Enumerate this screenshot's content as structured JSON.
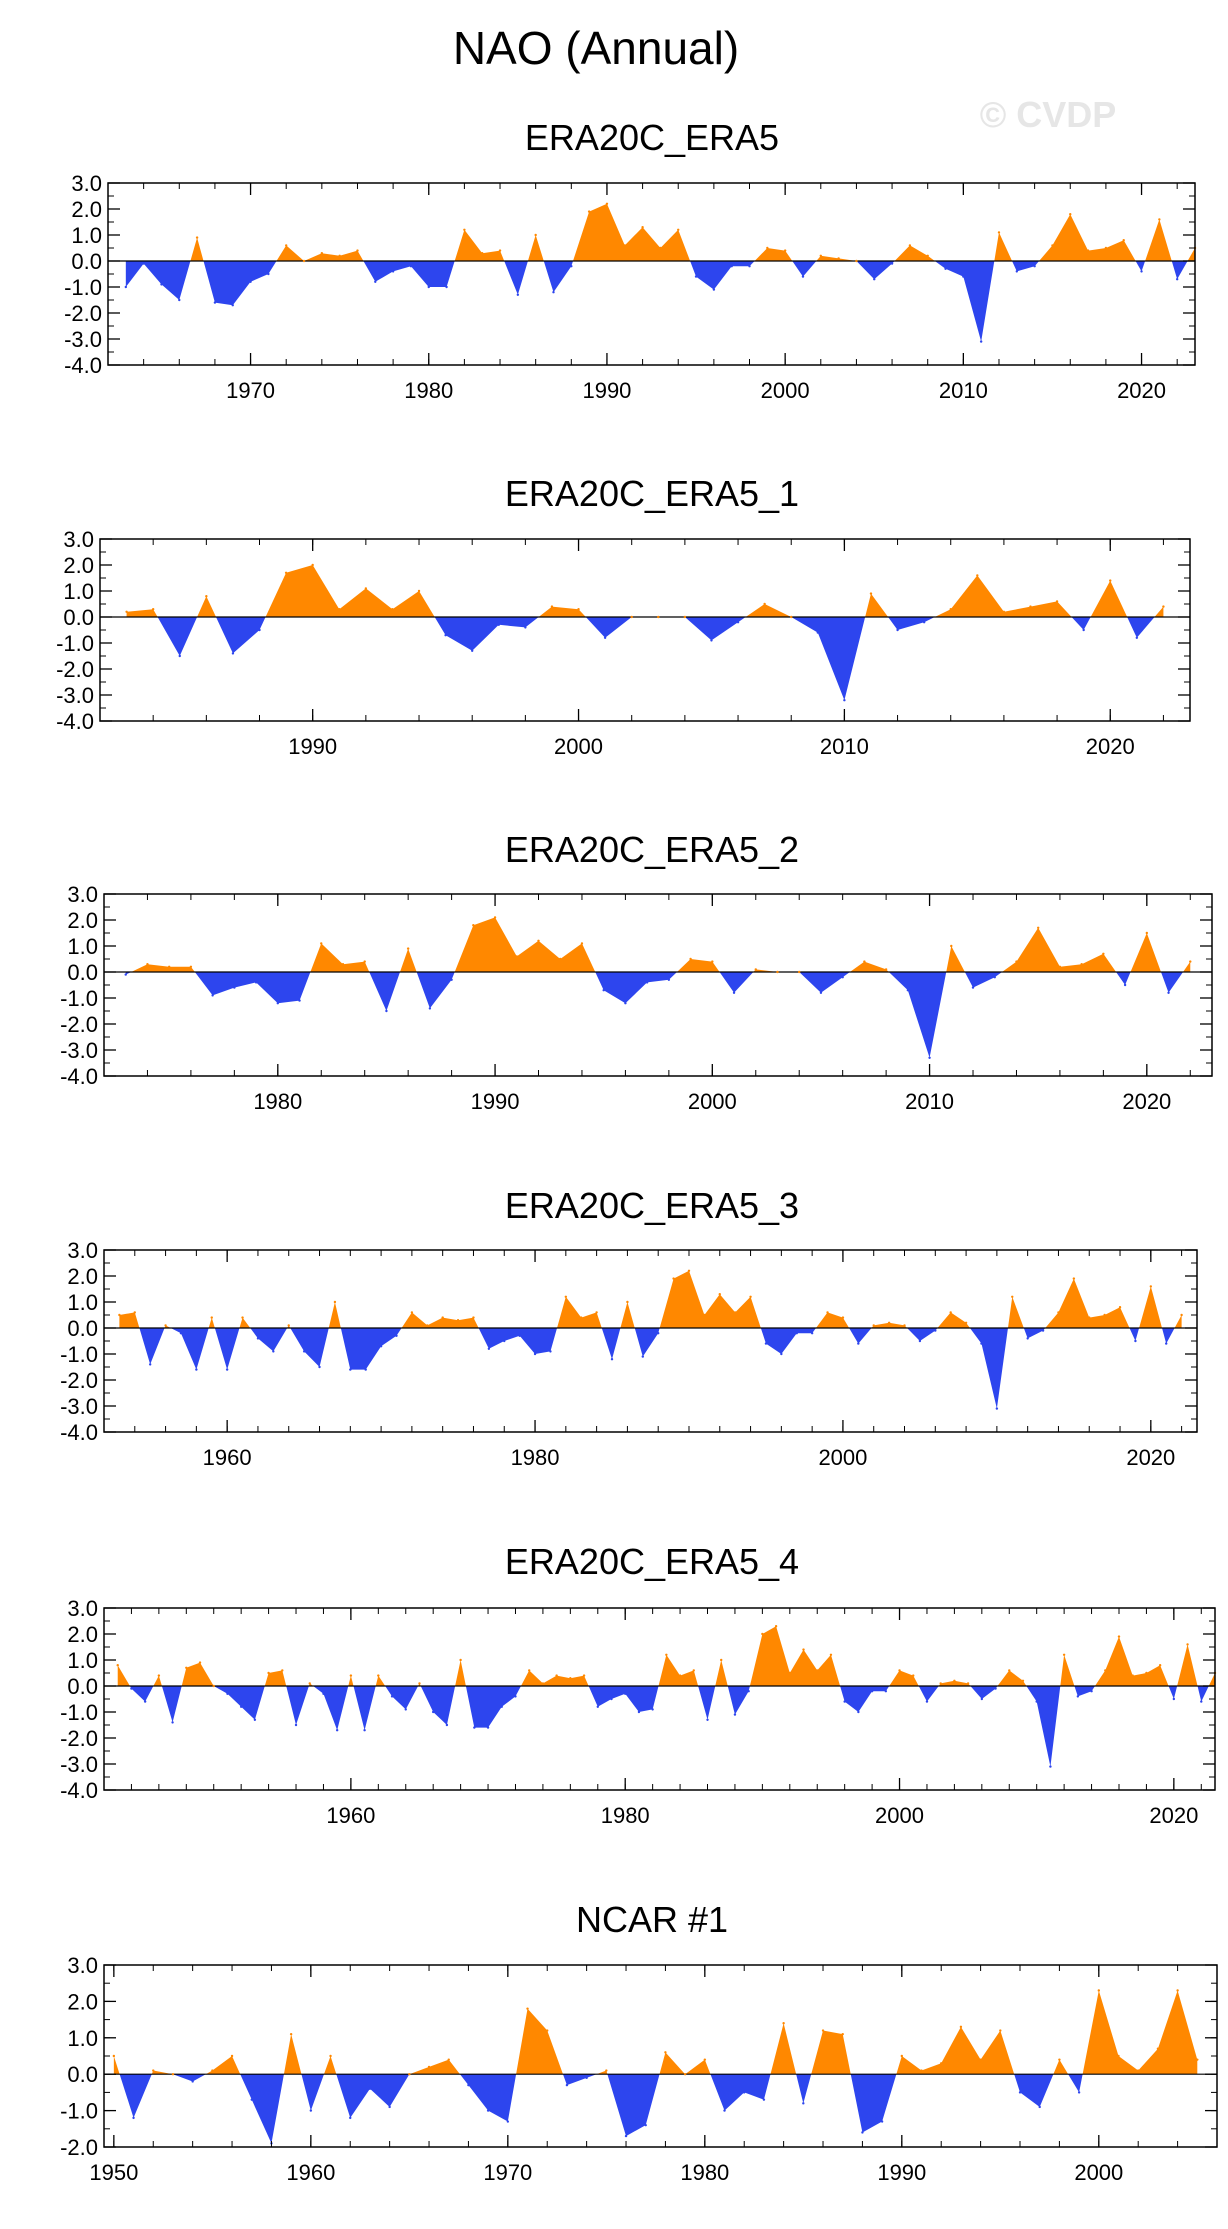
{
  "figure": {
    "title": "NAO (Annual)",
    "watermark": "© CVDP",
    "pos_color": "#ff8800",
    "neg_color": "#2d45ee"
  },
  "chart_data": [
    {
      "type": "area",
      "title": "ERA20C_ERA5",
      "xlim": [
        1962,
        2023
      ],
      "ylim": [
        -4.0,
        3.0
      ],
      "yticks": [
        3.0,
        2.0,
        1.0,
        0.0,
        -1.0,
        -2.0,
        -3.0,
        -4.0
      ],
      "ytick_labels": [
        "3.0",
        "2.0",
        "1.0",
        "0.0",
        "-1.0",
        "-2.0",
        "-3.0",
        "-4.0"
      ],
      "xticks": [
        1970,
        1980,
        1990,
        2000,
        2010,
        2020
      ],
      "xtick_labels": [
        "1970",
        "1980",
        "1990",
        "2000",
        "2010",
        "2020"
      ],
      "x_start": 1963,
      "values": [
        -1.0,
        -0.1,
        -0.9,
        -1.5,
        0.9,
        -1.6,
        -1.7,
        -0.8,
        -0.5,
        0.6,
        0.0,
        0.3,
        0.2,
        0.4,
        -0.8,
        -0.4,
        -0.2,
        -1.0,
        -1.0,
        1.2,
        0.3,
        0.4,
        -1.3,
        1.0,
        -1.2,
        -0.2,
        1.9,
        2.2,
        0.6,
        1.3,
        0.5,
        1.2,
        -0.6,
        -1.1,
        -0.2,
        -0.2,
        0.5,
        0.4,
        -0.6,
        0.2,
        0.1,
        0.0,
        -0.7,
        -0.1,
        0.6,
        0.2,
        -0.3,
        -0.6,
        -3.1,
        1.1,
        -0.4,
        -0.2,
        0.6,
        1.8,
        0.4,
        0.5,
        0.8,
        -0.4,
        1.6,
        -0.7,
        0.5
      ]
    },
    {
      "type": "area",
      "title": "ERA20C_ERA5_1",
      "xlim": [
        1982,
        2023
      ],
      "ylim": [
        -4.0,
        3.0
      ],
      "yticks": [
        3.0,
        2.0,
        1.0,
        0.0,
        -1.0,
        -2.0,
        -3.0,
        -4.0
      ],
      "ytick_labels": [
        "3.0",
        "2.0",
        "1.0",
        "0.0",
        "-1.0",
        "-2.0",
        "-3.0",
        "-4.0"
      ],
      "xticks": [
        1990,
        2000,
        2010,
        2020
      ],
      "xtick_labels": [
        "1990",
        "2000",
        "2010",
        "2020"
      ],
      "x_start": 1983,
      "values": [
        0.2,
        0.3,
        -1.5,
        0.8,
        -1.4,
        -0.5,
        1.7,
        2.0,
        0.3,
        1.1,
        0.3,
        1.0,
        -0.7,
        -1.3,
        -0.3,
        -0.4,
        0.4,
        0.3,
        -0.8,
        0.0,
        0.0,
        0.0,
        -0.9,
        -0.2,
        0.5,
        0.0,
        -0.6,
        -3.2,
        0.9,
        -0.5,
        -0.2,
        0.3,
        1.6,
        0.2,
        0.4,
        0.6,
        -0.5,
        1.4,
        -0.8,
        0.4
      ]
    },
    {
      "type": "area",
      "title": "ERA20C_ERA5_2",
      "xlim": [
        1972,
        2023
      ],
      "ylim": [
        -4.0,
        3.0
      ],
      "yticks": [
        3.0,
        2.0,
        1.0,
        0.0,
        -1.0,
        -2.0,
        -3.0,
        -4.0
      ],
      "ytick_labels": [
        "3.0",
        "2.0",
        "1.0",
        "0.0",
        "-1.0",
        "-2.0",
        "-3.0",
        "-4.0"
      ],
      "xticks": [
        1980,
        1990,
        2000,
        2010,
        2020
      ],
      "xtick_labels": [
        "1980",
        "1990",
        "2000",
        "2010",
        "2020"
      ],
      "x_start": 1973,
      "values": [
        -0.1,
        0.3,
        0.2,
        0.2,
        -0.9,
        -0.6,
        -0.4,
        -1.2,
        -1.1,
        1.1,
        0.3,
        0.4,
        -1.5,
        0.9,
        -1.4,
        -0.3,
        1.8,
        2.1,
        0.6,
        1.2,
        0.5,
        1.1,
        -0.7,
        -1.2,
        -0.4,
        -0.3,
        0.5,
        0.4,
        -0.8,
        0.1,
        0.0,
        0.0,
        -0.8,
        -0.2,
        0.4,
        0.1,
        -0.7,
        -3.3,
        1.0,
        -0.6,
        -0.2,
        0.4,
        1.7,
        0.2,
        0.3,
        0.7,
        -0.5,
        1.5,
        -0.8,
        0.4
      ]
    },
    {
      "type": "area",
      "title": "ERA20C_ERA5_3",
      "xlim": [
        1952,
        2023
      ],
      "ylim": [
        -4.0,
        3.0
      ],
      "yticks": [
        3.0,
        2.0,
        1.0,
        0.0,
        -1.0,
        -2.0,
        -3.0,
        -4.0
      ],
      "ytick_labels": [
        "3.0",
        "2.0",
        "1.0",
        "0.0",
        "-1.0",
        "-2.0",
        "-3.0",
        "-4.0"
      ],
      "xticks": [
        1960,
        1980,
        2000,
        2020
      ],
      "xtick_labels": [
        "1960",
        "1980",
        "2000",
        "2020"
      ],
      "x_start": 1953,
      "values": [
        0.5,
        0.6,
        -1.4,
        0.1,
        -0.2,
        -1.6,
        0.4,
        -1.6,
        0.4,
        -0.4,
        -0.9,
        0.1,
        -0.9,
        -1.5,
        1.0,
        -1.6,
        -1.6,
        -0.7,
        -0.3,
        0.6,
        0.1,
        0.4,
        0.3,
        0.4,
        -0.8,
        -0.5,
        -0.3,
        -1.0,
        -0.9,
        1.2,
        0.4,
        0.6,
        -1.2,
        1.0,
        -1.1,
        -0.2,
        1.9,
        2.2,
        0.5,
        1.3,
        0.6,
        1.2,
        -0.6,
        -1.0,
        -0.2,
        -0.2,
        0.6,
        0.4,
        -0.6,
        0.1,
        0.2,
        0.1,
        -0.5,
        -0.1,
        0.6,
        0.2,
        -0.6,
        -3.1,
        1.2,
        -0.4,
        -0.1,
        0.6,
        1.9,
        0.4,
        0.5,
        0.8,
        -0.5,
        1.6,
        -0.6,
        0.5
      ]
    },
    {
      "type": "area",
      "title": "ERA20C_ERA5_4",
      "xlim": [
        1942,
        2023
      ],
      "ylim": [
        -4.0,
        3.0
      ],
      "yticks": [
        3.0,
        2.0,
        1.0,
        0.0,
        -1.0,
        -2.0,
        -3.0,
        -4.0
      ],
      "ytick_labels": [
        "3.0",
        "2.0",
        "1.0",
        "0.0",
        "-1.0",
        "-2.0",
        "-3.0",
        "-4.0"
      ],
      "xticks": [
        1960,
        1980,
        2000,
        2020
      ],
      "xtick_labels": [
        "1960",
        "1980",
        "2000",
        "2020"
      ],
      "x_start": 1943,
      "values": [
        0.8,
        -0.1,
        -0.6,
        0.4,
        -1.4,
        0.7,
        0.9,
        0.0,
        -0.3,
        -0.8,
        -1.3,
        0.5,
        0.6,
        -1.5,
        0.1,
        -0.3,
        -1.7,
        0.4,
        -1.7,
        0.4,
        -0.4,
        -0.9,
        0.1,
        -1.0,
        -1.5,
        1.0,
        -1.6,
        -1.6,
        -0.8,
        -0.4,
        0.6,
        0.1,
        0.4,
        0.3,
        0.4,
        -0.8,
        -0.5,
        -0.3,
        -1.0,
        -0.9,
        1.2,
        0.4,
        0.6,
        -1.3,
        1.0,
        -1.1,
        -0.2,
        2.0,
        2.3,
        0.5,
        1.4,
        0.6,
        1.2,
        -0.6,
        -1.0,
        -0.2,
        -0.2,
        0.6,
        0.4,
        -0.6,
        0.1,
        0.2,
        0.1,
        -0.5,
        -0.1,
        0.6,
        0.2,
        -0.6,
        -3.1,
        1.2,
        -0.4,
        -0.2,
        0.6,
        1.9,
        0.4,
        0.5,
        0.8,
        -0.5,
        1.6,
        -0.6,
        0.5
      ]
    },
    {
      "type": "area",
      "title": "NCAR #1",
      "xlim": [
        1949.5,
        2006
      ],
      "ylim": [
        -2.0,
        3.0
      ],
      "yticks": [
        3.0,
        2.0,
        1.0,
        0.0,
        -1.0,
        -2.0
      ],
      "ytick_labels": [
        "3.0",
        "2.0",
        "1.0",
        "0.0",
        "-1.0",
        "-2.0"
      ],
      "xticks": [
        1950,
        1960,
        1970,
        1980,
        1990,
        2000
      ],
      "xtick_labels": [
        "1950",
        "1960",
        "1970",
        "1980",
        "1990",
        "2000"
      ],
      "x_start": 1950,
      "values": [
        0.5,
        -1.2,
        0.1,
        0.0,
        -0.2,
        0.1,
        0.5,
        -0.7,
        -1.9,
        1.1,
        -1.0,
        0.5,
        -1.2,
        -0.4,
        -0.9,
        0.0,
        0.2,
        0.4,
        -0.3,
        -1.0,
        -1.3,
        1.8,
        1.2,
        -0.3,
        -0.1,
        0.1,
        -1.7,
        -1.4,
        0.6,
        0.0,
        0.4,
        -1.0,
        -0.5,
        -0.7,
        1.4,
        -0.8,
        1.2,
        1.1,
        -1.6,
        -1.3,
        0.5,
        0.1,
        0.3,
        1.3,
        0.4,
        1.2,
        -0.5,
        -0.9,
        0.4,
        -0.5,
        2.3,
        0.5,
        0.1,
        0.7,
        2.3,
        0.4
      ]
    }
  ]
}
